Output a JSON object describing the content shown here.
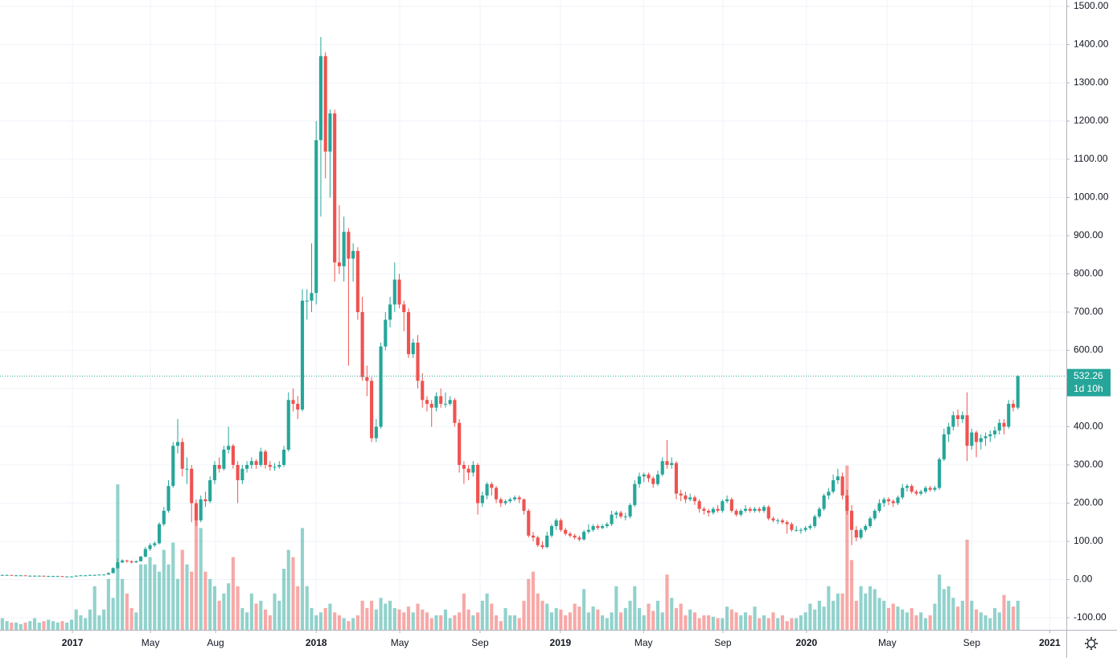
{
  "chart_data": {
    "type": "candlestick",
    "up_color": "#26a69a",
    "down_color": "#ef5350",
    "grid": true,
    "candles": [
      [
        12,
        13,
        11,
        12
      ],
      [
        12,
        13,
        11,
        12
      ],
      [
        12,
        12,
        11,
        11
      ],
      [
        11,
        12,
        10,
        11
      ],
      [
        11,
        12,
        10,
        11
      ],
      [
        11,
        11,
        10,
        10
      ],
      [
        10,
        11,
        9,
        10
      ],
      [
        10,
        11,
        9,
        10
      ],
      [
        10,
        11,
        9,
        10
      ],
      [
        10,
        10,
        8,
        9
      ],
      [
        9,
        10,
        8,
        9
      ],
      [
        9,
        10,
        8,
        9
      ],
      [
        9,
        10,
        8,
        9
      ],
      [
        9,
        9,
        7,
        8
      ],
      [
        8,
        9,
        7,
        8
      ],
      [
        8,
        9,
        7,
        8
      ],
      [
        8,
        11,
        8,
        10
      ],
      [
        10,
        12,
        10,
        11
      ],
      [
        11,
        12,
        10,
        11
      ],
      [
        11,
        13,
        11,
        12
      ],
      [
        12,
        13,
        11,
        12
      ],
      [
        12,
        14,
        12,
        13
      ],
      [
        13,
        14,
        12,
        13
      ],
      [
        13,
        19,
        13,
        17
      ],
      [
        17,
        32,
        16,
        30
      ],
      [
        30,
        55,
        28,
        45
      ],
      [
        45,
        53,
        43,
        50
      ],
      [
        50,
        52,
        44,
        48
      ],
      [
        48,
        50,
        42,
        45
      ],
      [
        45,
        50,
        44,
        48
      ],
      [
        48,
        62,
        47,
        60
      ],
      [
        60,
        85,
        58,
        80
      ],
      [
        80,
        95,
        75,
        90
      ],
      [
        90,
        100,
        85,
        95
      ],
      [
        95,
        150,
        92,
        145
      ],
      [
        145,
        190,
        140,
        180
      ],
      [
        180,
        260,
        175,
        245
      ],
      [
        245,
        360,
        240,
        350
      ],
      [
        350,
        420,
        330,
        360
      ],
      [
        360,
        370,
        270,
        290
      ],
      [
        290,
        320,
        250,
        290
      ],
      [
        290,
        300,
        150,
        200
      ],
      [
        200,
        210,
        140,
        155
      ],
      [
        155,
        220,
        150,
        210
      ],
      [
        210,
        230,
        190,
        205
      ],
      [
        205,
        270,
        200,
        260
      ],
      [
        260,
        310,
        250,
        300
      ],
      [
        300,
        320,
        280,
        290
      ],
      [
        290,
        350,
        285,
        340
      ],
      [
        340,
        400,
        330,
        350
      ],
      [
        350,
        355,
        290,
        300
      ],
      [
        300,
        310,
        200,
        260
      ],
      [
        260,
        300,
        250,
        290
      ],
      [
        290,
        310,
        280,
        300
      ],
      [
        300,
        320,
        290,
        310
      ],
      [
        310,
        315,
        290,
        300
      ],
      [
        300,
        345,
        295,
        335
      ],
      [
        335,
        340,
        290,
        300
      ],
      [
        300,
        310,
        285,
        295
      ],
      [
        295,
        305,
        285,
        295
      ],
      [
        295,
        310,
        290,
        300
      ],
      [
        300,
        350,
        295,
        340
      ],
      [
        340,
        490,
        335,
        470
      ],
      [
        470,
        500,
        440,
        460
      ],
      [
        460,
        480,
        420,
        445
      ],
      [
        445,
        760,
        440,
        730
      ],
      [
        730,
        760,
        680,
        730
      ],
      [
        730,
        880,
        700,
        750
      ],
      [
        750,
        1200,
        720,
        1150
      ],
      [
        1150,
        1420,
        950,
        1370
      ],
      [
        1370,
        1380,
        1050,
        1120
      ],
      [
        1120,
        1230,
        1000,
        1220
      ],
      [
        1220,
        1230,
        780,
        830
      ],
      [
        830,
        980,
        800,
        820
      ],
      [
        820,
        950,
        780,
        910
      ],
      [
        910,
        920,
        560,
        840
      ],
      [
        840,
        880,
        780,
        860
      ],
      [
        860,
        870,
        680,
        700
      ],
      [
        700,
        740,
        520,
        530
      ],
      [
        530,
        560,
        480,
        520
      ],
      [
        520,
        530,
        360,
        370
      ],
      [
        370,
        420,
        360,
        400
      ],
      [
        400,
        620,
        395,
        610
      ],
      [
        610,
        700,
        600,
        680
      ],
      [
        680,
        740,
        660,
        720
      ],
      [
        720,
        830,
        700,
        785
      ],
      [
        785,
        800,
        710,
        720
      ],
      [
        720,
        730,
        650,
        700
      ],
      [
        700,
        710,
        580,
        590
      ],
      [
        590,
        630,
        580,
        620
      ],
      [
        620,
        640,
        500,
        520
      ],
      [
        520,
        540,
        450,
        470
      ],
      [
        470,
        480,
        440,
        460
      ],
      [
        460,
        470,
        400,
        450
      ],
      [
        450,
        490,
        440,
        480
      ],
      [
        480,
        500,
        450,
        460
      ],
      [
        460,
        490,
        450,
        460
      ],
      [
        460,
        480,
        455,
        470
      ],
      [
        470,
        475,
        400,
        410
      ],
      [
        410,
        420,
        280,
        300
      ],
      [
        300,
        310,
        250,
        290
      ],
      [
        290,
        300,
        260,
        280
      ],
      [
        280,
        310,
        270,
        300
      ],
      [
        300,
        305,
        170,
        200
      ],
      [
        200,
        230,
        190,
        220
      ],
      [
        220,
        255,
        210,
        250
      ],
      [
        250,
        255,
        220,
        240
      ],
      [
        240,
        245,
        200,
        210
      ],
      [
        210,
        215,
        190,
        200
      ],
      [
        200,
        210,
        195,
        205
      ],
      [
        205,
        215,
        200,
        210
      ],
      [
        210,
        220,
        205,
        215
      ],
      [
        215,
        220,
        200,
        210
      ],
      [
        210,
        212,
        170,
        180
      ],
      [
        180,
        185,
        110,
        115
      ],
      [
        115,
        125,
        100,
        110
      ],
      [
        110,
        115,
        85,
        90
      ],
      [
        90,
        100,
        80,
        85
      ],
      [
        85,
        125,
        82,
        115
      ],
      [
        115,
        145,
        110,
        140
      ],
      [
        140,
        160,
        130,
        155
      ],
      [
        155,
        160,
        125,
        130
      ],
      [
        130,
        135,
        115,
        120
      ],
      [
        120,
        125,
        110,
        115
      ],
      [
        115,
        120,
        105,
        110
      ],
      [
        110,
        115,
        100,
        105
      ],
      [
        105,
        130,
        102,
        125
      ],
      [
        125,
        145,
        120,
        130
      ],
      [
        130,
        145,
        125,
        140
      ],
      [
        140,
        145,
        130,
        135
      ],
      [
        135,
        145,
        132,
        140
      ],
      [
        140,
        150,
        135,
        145
      ],
      [
        145,
        180,
        140,
        170
      ],
      [
        170,
        180,
        160,
        175
      ],
      [
        175,
        180,
        160,
        165
      ],
      [
        165,
        175,
        155,
        165
      ],
      [
        165,
        200,
        160,
        195
      ],
      [
        195,
        260,
        190,
        250
      ],
      [
        250,
        280,
        240,
        270
      ],
      [
        270,
        280,
        255,
        275
      ],
      [
        275,
        280,
        255,
        265
      ],
      [
        265,
        270,
        240,
        250
      ],
      [
        250,
        285,
        245,
        275
      ],
      [
        275,
        320,
        270,
        310
      ],
      [
        310,
        365,
        290,
        300
      ],
      [
        300,
        320,
        290,
        305
      ],
      [
        305,
        310,
        210,
        225
      ],
      [
        225,
        235,
        205,
        220
      ],
      [
        220,
        230,
        200,
        210
      ],
      [
        210,
        225,
        205,
        215
      ],
      [
        215,
        220,
        195,
        205
      ],
      [
        205,
        210,
        175,
        185
      ],
      [
        185,
        190,
        170,
        180
      ],
      [
        180,
        185,
        165,
        175
      ],
      [
        175,
        190,
        170,
        185
      ],
      [
        185,
        195,
        175,
        180
      ],
      [
        180,
        210,
        175,
        205
      ],
      [
        205,
        220,
        200,
        210
      ],
      [
        210,
        215,
        175,
        180
      ],
      [
        180,
        185,
        165,
        170
      ],
      [
        170,
        185,
        165,
        180
      ],
      [
        180,
        195,
        175,
        185
      ],
      [
        185,
        190,
        175,
        180
      ],
      [
        180,
        190,
        175,
        185
      ],
      [
        185,
        190,
        175,
        180
      ],
      [
        180,
        195,
        175,
        190
      ],
      [
        190,
        195,
        155,
        160
      ],
      [
        160,
        165,
        150,
        155
      ],
      [
        155,
        160,
        145,
        155
      ],
      [
        155,
        160,
        145,
        150
      ],
      [
        150,
        155,
        120,
        145
      ],
      [
        145,
        150,
        125,
        130
      ],
      [
        130,
        140,
        125,
        130
      ],
      [
        130,
        135,
        120,
        130
      ],
      [
        130,
        140,
        125,
        135
      ],
      [
        135,
        145,
        130,
        140
      ],
      [
        140,
        170,
        135,
        165
      ],
      [
        165,
        190,
        160,
        185
      ],
      [
        185,
        225,
        180,
        220
      ],
      [
        220,
        240,
        210,
        230
      ],
      [
        230,
        275,
        225,
        260
      ],
      [
        260,
        290,
        250,
        270
      ],
      [
        270,
        280,
        210,
        220
      ],
      [
        220,
        235,
        170,
        180
      ],
      [
        180,
        195,
        90,
        130
      ],
      [
        130,
        140,
        100,
        110
      ],
      [
        110,
        135,
        105,
        130
      ],
      [
        130,
        145,
        125,
        140
      ],
      [
        140,
        165,
        135,
        160
      ],
      [
        160,
        185,
        155,
        180
      ],
      [
        180,
        210,
        175,
        200
      ],
      [
        200,
        215,
        190,
        210
      ],
      [
        210,
        215,
        195,
        205
      ],
      [
        205,
        210,
        190,
        200
      ],
      [
        200,
        220,
        195,
        215
      ],
      [
        215,
        250,
        210,
        240
      ],
      [
        240,
        250,
        230,
        245
      ],
      [
        245,
        250,
        225,
        230
      ],
      [
        230,
        235,
        220,
        225
      ],
      [
        225,
        235,
        220,
        230
      ],
      [
        230,
        245,
        225,
        240
      ],
      [
        240,
        245,
        230,
        235
      ],
      [
        235,
        245,
        230,
        240
      ],
      [
        240,
        320,
        235,
        315
      ],
      [
        315,
        395,
        310,
        380
      ],
      [
        380,
        410,
        360,
        400
      ],
      [
        400,
        440,
        390,
        430
      ],
      [
        430,
        445,
        400,
        420
      ],
      [
        420,
        440,
        410,
        430
      ],
      [
        430,
        490,
        310,
        350
      ],
      [
        350,
        395,
        340,
        385
      ],
      [
        385,
        390,
        320,
        360
      ],
      [
        360,
        380,
        340,
        370
      ],
      [
        370,
        385,
        350,
        375
      ],
      [
        375,
        390,
        360,
        380
      ],
      [
        380,
        400,
        370,
        390
      ],
      [
        390,
        420,
        380,
        410
      ],
      [
        410,
        420,
        380,
        400
      ],
      [
        400,
        470,
        395,
        460
      ],
      [
        460,
        470,
        440,
        450
      ],
      [
        450,
        535,
        445,
        532.26
      ]
    ],
    "volume": [
      8,
      6,
      5,
      5,
      4,
      5,
      6,
      8,
      5,
      6,
      7,
      6,
      5,
      6,
      5,
      7,
      14,
      10,
      8,
      14,
      30,
      10,
      14,
      35,
      22,
      100,
      35,
      25,
      15,
      12,
      45,
      45,
      50,
      45,
      40,
      55,
      45,
      60,
      35,
      55,
      45,
      40,
      86,
      70,
      40,
      35,
      30,
      20,
      25,
      32,
      50,
      30,
      15,
      12,
      25,
      18,
      20,
      14,
      10,
      25,
      20,
      42,
      55,
      50,
      30,
      70,
      30,
      15,
      10,
      12,
      15,
      18,
      12,
      10,
      8,
      6,
      8,
      10,
      20,
      15,
      20,
      14,
      22,
      18,
      20,
      15,
      14,
      12,
      16,
      12,
      18,
      14,
      12,
      8,
      10,
      10,
      14,
      8,
      10,
      12,
      25,
      14,
      10,
      12,
      20,
      25,
      18,
      10,
      6,
      15,
      10,
      10,
      8,
      20,
      35,
      40,
      25,
      20,
      18,
      12,
      15,
      14,
      10,
      12,
      18,
      16,
      28,
      12,
      16,
      14,
      10,
      8,
      12,
      30,
      12,
      15,
      20,
      30,
      15,
      10,
      18,
      13,
      20,
      12,
      38,
      22,
      15,
      18,
      10,
      14,
      12,
      8,
      10,
      10,
      9,
      8,
      8,
      16,
      14,
      12,
      10,
      12,
      10,
      16,
      8,
      10,
      8,
      12,
      8,
      10,
      6,
      8,
      8,
      10,
      12,
      18,
      14,
      20,
      16,
      30,
      20,
      25,
      25,
      113,
      48,
      20,
      30,
      25,
      30,
      28,
      22,
      20,
      15,
      18,
      16,
      14,
      12,
      15,
      10,
      12,
      8,
      10,
      18,
      38,
      28,
      30,
      22,
      16,
      20,
      62,
      20,
      14,
      12,
      10,
      8,
      15,
      12,
      24,
      20,
      16,
      20
    ],
    "xlim": [
      -0.5,
      230.5
    ],
    "xticks": [
      {
        "value": 15.2,
        "label": "2017"
      },
      {
        "value": 32.1,
        "label": "May"
      },
      {
        "value": 46.2,
        "label": "Aug"
      },
      {
        "value": 68.0,
        "label": "2018"
      },
      {
        "value": 86.1,
        "label": "May"
      },
      {
        "value": 103.5,
        "label": "Sep"
      },
      {
        "value": 120.9,
        "label": "2019"
      },
      {
        "value": 138.9,
        "label": "May"
      },
      {
        "value": 156.1,
        "label": "Sep"
      },
      {
        "value": 174.2,
        "label": "2020"
      },
      {
        "value": 191.7,
        "label": "May"
      },
      {
        "value": 210.0,
        "label": "Sep"
      },
      {
        "value": 226.9,
        "label": "2021"
      }
    ],
    "ylim": [
      -131.6,
      1516.8
    ],
    "yticks": [
      {
        "value": -100,
        "label": "-100.00"
      },
      {
        "value": 0,
        "label": "0.00"
      },
      {
        "value": 100,
        "label": "100.00"
      },
      {
        "value": 200,
        "label": "200.00"
      },
      {
        "value": 300,
        "label": "300.00"
      },
      {
        "value": 400,
        "label": "400.00"
      },
      {
        "value": 500,
        "label": "500.00"
      },
      {
        "value": 600,
        "label": "600.00"
      },
      {
        "value": 700,
        "label": "700.00"
      },
      {
        "value": 800,
        "label": "800.00"
      },
      {
        "value": 900,
        "label": "900.00"
      },
      {
        "value": 1000,
        "label": "1000.00"
      },
      {
        "value": 1100,
        "label": "1100.00"
      },
      {
        "value": 1200,
        "label": "1200.00"
      },
      {
        "value": 1300,
        "label": "1300.00"
      },
      {
        "value": 1400,
        "label": "1400.00"
      },
      {
        "value": 1500,
        "label": "1500.00"
      }
    ],
    "y2lim": [
      0,
      433
    ],
    "countdown": "1d 10h"
  }
}
